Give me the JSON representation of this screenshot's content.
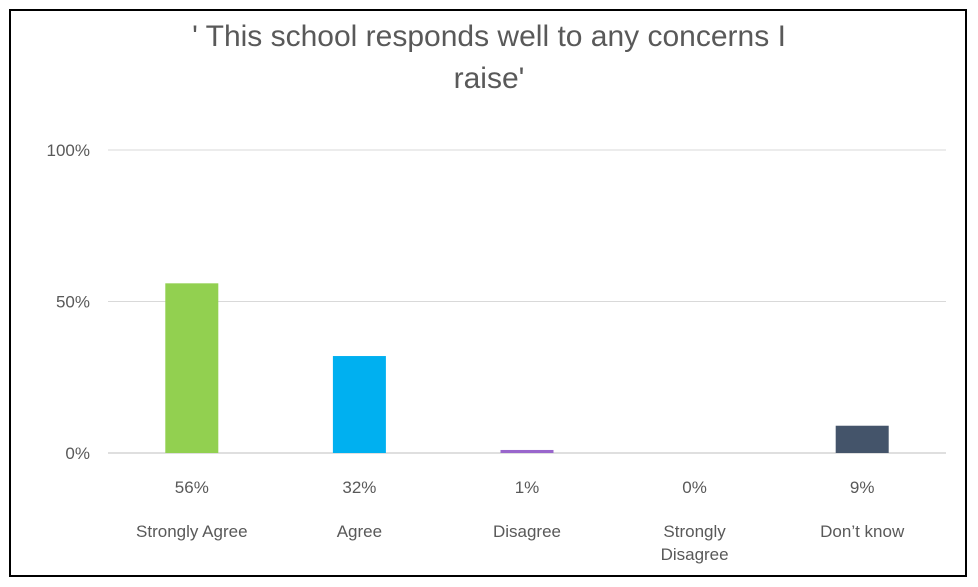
{
  "chart_data": {
    "type": "bar",
    "title_lines": [
      "' This school responds well to any concerns I",
      "raise'"
    ],
    "categories": [
      "Strongly Agree",
      "Agree",
      "Disagree",
      "Strongly Disagree",
      "Don’t know"
    ],
    "category_lines": [
      [
        "Strongly Agree"
      ],
      [
        "Agree"
      ],
      [
        "Disagree"
      ],
      [
        "Strongly",
        "Disagree"
      ],
      [
        "Don’t know"
      ]
    ],
    "values": [
      56,
      32,
      1,
      0,
      9
    ],
    "data_labels": [
      "56%",
      "32%",
      "1%",
      "0%",
      "9%"
    ],
    "bar_colors": [
      "#92d050",
      "#00b0f0",
      "#9966cc",
      "#7f7f7f",
      "#44546a"
    ],
    "y_ticks": [
      0,
      50,
      100
    ],
    "y_tick_labels": [
      "0%",
      "50%",
      "100%"
    ],
    "ylim": [
      0,
      100
    ],
    "grid": true,
    "legend": "none"
  }
}
